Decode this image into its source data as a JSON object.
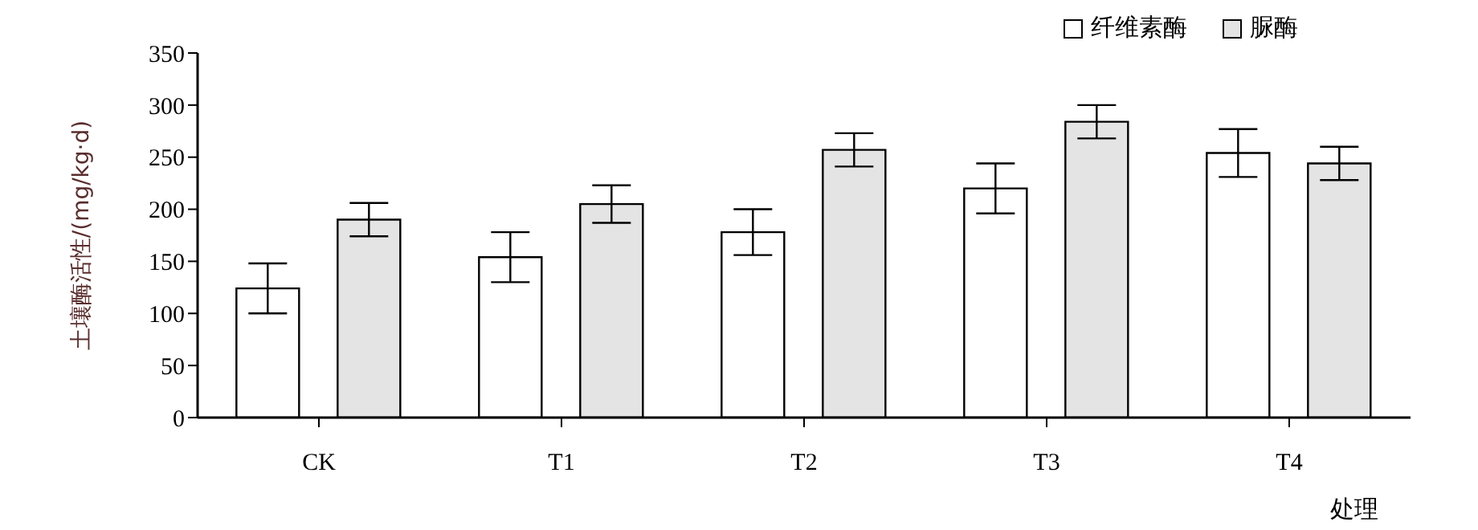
{
  "chart_data": {
    "type": "bar",
    "xlabel": "处理",
    "ylabel": "土壤酶活性/(mg/kg·d)",
    "categories": [
      "CK",
      "T1",
      "T2",
      "T3",
      "T4"
    ],
    "series": [
      {
        "name": "纤维素酶",
        "color": "#ffffff",
        "values": [
          124,
          154,
          178,
          220,
          254
        ],
        "errors": [
          24,
          24,
          22,
          24,
          23
        ]
      },
      {
        "name": "脲酶",
        "color": "#e4e4e4",
        "values": [
          190,
          205,
          257,
          284,
          244
        ],
        "errors": [
          16,
          18,
          16,
          16,
          16
        ]
      }
    ],
    "ylim": [
      0,
      350
    ],
    "yticks": [
      0,
      50,
      100,
      150,
      200,
      250,
      300,
      350
    ],
    "grid": false,
    "legend": "top right"
  }
}
